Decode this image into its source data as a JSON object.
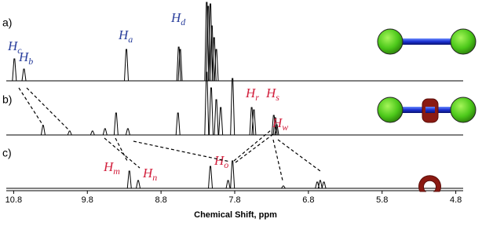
{
  "chart_data": {
    "type": "spectrum",
    "xlabel": "Chemical Shift, ppm",
    "xlim": [
      10.9,
      4.7
    ],
    "xticks": [
      10.8,
      9.8,
      8.8,
      7.8,
      6.8,
      5.8,
      4.8
    ],
    "ylim": [
      0,
      100
    ],
    "series": [
      {
        "name": "a)",
        "color": "#000000",
        "x": [
          10.79,
          10.66,
          9.27,
          8.56,
          8.54,
          8.18,
          8.16,
          8.13,
          8.11,
          8.08,
          8.05
        ],
        "values": [
          28,
          15,
          40,
          43,
          40,
          100,
          95,
          98,
          70,
          55,
          40
        ],
        "annotations": [
          {
            "text": "H",
            "sub": "c",
            "color": "#2a3f9c"
          },
          {
            "text": "H",
            "sub": "b",
            "color": "#2a3f9c"
          },
          {
            "text": "H",
            "sub": "a",
            "color": "#2a3f9c"
          },
          {
            "text": "H",
            "sub": "d",
            "color": "#2a3f9c"
          }
        ]
      },
      {
        "name": "b)",
        "color": "#000000",
        "x": [
          10.4,
          10.04,
          9.73,
          9.56,
          9.41,
          9.25,
          8.57,
          8.18,
          8.12,
          8.05,
          7.99,
          7.83,
          7.57,
          7.54,
          7.27,
          7.25,
          7.23
        ],
        "values": [
          12,
          5,
          5,
          8,
          28,
          8,
          28,
          80,
          60,
          45,
          35,
          72,
          35,
          32,
          25,
          22,
          13
        ],
        "annotations": [
          {
            "text": "H",
            "sub": "r",
            "color": "#d21f3c"
          },
          {
            "text": "H",
            "sub": "s",
            "color": "#d21f3c"
          },
          {
            "text": "H",
            "sub": "w",
            "color": "#d21f3c"
          }
        ]
      },
      {
        "name": "c)",
        "color": "#000000",
        "x": [
          9.23,
          9.11,
          8.13,
          7.89,
          7.83,
          7.14,
          6.68,
          6.64,
          6.59
        ],
        "values": [
          22,
          10,
          28,
          10,
          35,
          3,
          8,
          10,
          8
        ],
        "annotations": [
          {
            "text": "H",
            "sub": "m",
            "color": "#d21f3c"
          },
          {
            "text": "H",
            "sub": "n",
            "color": "#d21f3c"
          },
          {
            "text": "H",
            "sub": "o",
            "color": "#d21f3c"
          }
        ]
      }
    ]
  }
}
